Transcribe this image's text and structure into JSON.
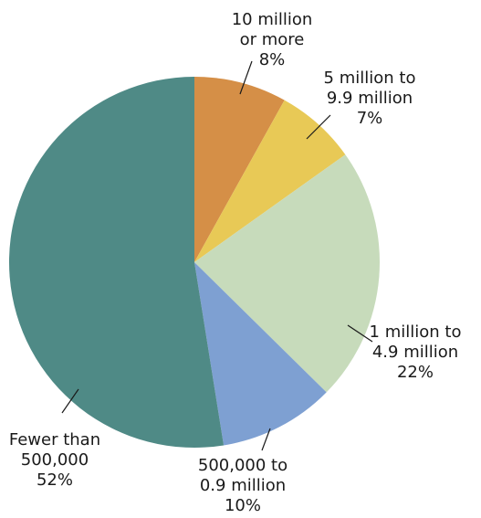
{
  "chart_data": {
    "type": "pie",
    "title": "",
    "start_angle_deg": 0,
    "direction": "clockwise",
    "slices": [
      {
        "label_lines": [
          "10 million",
          "or more"
        ],
        "value": 8,
        "value_label": "8%",
        "color": "#D58F47"
      },
      {
        "label_lines": [
          "5 million to",
          "9.9 million"
        ],
        "value": 7,
        "value_label": "7%",
        "color": "#E8C956"
      },
      {
        "label_lines": [
          "1 million to",
          "4.9 million"
        ],
        "value": 22,
        "value_label": "22%",
        "color": "#C7DBBB"
      },
      {
        "label_lines": [
          "500,000 to",
          "0.9 million"
        ],
        "value": 10,
        "value_label": "10%",
        "color": "#7EA0D2"
      },
      {
        "label_lines": [
          "Fewer than",
          "500,000"
        ],
        "value": 52,
        "value_label": "52%",
        "color": "#4F8A86"
      }
    ]
  }
}
